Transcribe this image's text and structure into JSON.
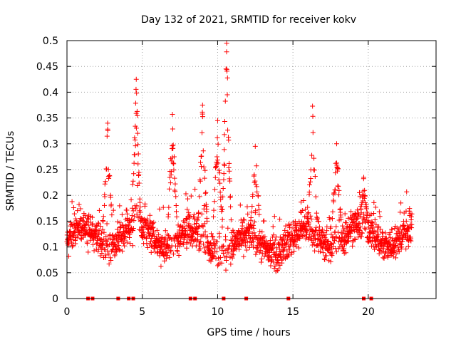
{
  "chart_data": {
    "type": "scatter",
    "title": "Day 132 of 2021, SRMTID for receiver kokv",
    "xlabel": "GPS time / hours",
    "ylabel": "SRMTID / TECUs",
    "xlim": [
      0,
      24.5
    ],
    "ylim": [
      0,
      0.5
    ],
    "xticks": [
      0,
      5,
      10,
      15,
      20
    ],
    "yticks": [
      0,
      0.05,
      0.1,
      0.15,
      0.2,
      0.25,
      0.3,
      0.35,
      0.4,
      0.45,
      0.5
    ],
    "grid": true,
    "marker": "+",
    "color": "#ff0000",
    "zero_markers_x": [
      1.4,
      1.7,
      3.4,
      4.1,
      4.4,
      8.2,
      8.5,
      10.4,
      11.9,
      14.7,
      19.7,
      20.2
    ],
    "peaks": [
      {
        "x": 2.7,
        "y": 0.34
      },
      {
        "x": 4.6,
        "y": 0.425
      },
      {
        "x": 7.0,
        "y": 0.357
      },
      {
        "x": 9.0,
        "y": 0.375
      },
      {
        "x": 10.0,
        "y": 0.345
      },
      {
        "x": 10.6,
        "y": 0.495
      },
      {
        "x": 12.5,
        "y": 0.295
      },
      {
        "x": 16.3,
        "y": 0.373
      },
      {
        "x": 17.9,
        "y": 0.3
      },
      {
        "x": 19.7,
        "y": 0.235
      }
    ]
  }
}
